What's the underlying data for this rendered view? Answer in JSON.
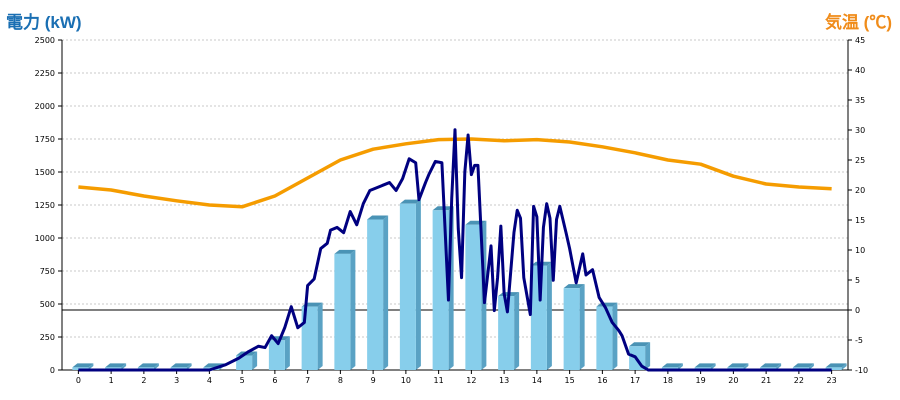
{
  "left_title": "電力 (kW)",
  "right_title": "気温 (℃)",
  "chart_data": {
    "type": "bar+line",
    "categories": [
      "0",
      "1",
      "2",
      "3",
      "4",
      "5",
      "6",
      "7",
      "8",
      "9",
      "10",
      "11",
      "12",
      "13",
      "14",
      "15",
      "16",
      "17",
      "18",
      "19",
      "20",
      "21",
      "22",
      "23"
    ],
    "y_left": {
      "label": "電力 (kW)",
      "lim": [
        0,
        2500
      ],
      "ticks": [
        0,
        250,
        500,
        750,
        1000,
        1250,
        1500,
        1750,
        2000,
        2250,
        2500
      ]
    },
    "y_right": {
      "label": "気温 (℃)",
      "lim": [
        -10,
        45
      ],
      "ticks": [
        -10,
        -5,
        0,
        5,
        10,
        15,
        20,
        25,
        30,
        35,
        40,
        45
      ]
    },
    "grid": true,
    "bars": [
      20,
      20,
      20,
      20,
      20,
      110,
      225,
      480,
      880,
      1140,
      1260,
      1210,
      1100,
      560,
      790,
      620,
      480,
      180,
      20,
      20,
      20,
      20,
      20,
      20
    ],
    "power_line": {
      "x": [
        0,
        1,
        2,
        3,
        4,
        4.5,
        4.9,
        5.2,
        5.5,
        5.7,
        5.9,
        6.1,
        6.3,
        6.5,
        6.7,
        6.9,
        7.0,
        7.2,
        7.4,
        7.6,
        7.7,
        7.9,
        8.1,
        8.3,
        8.5,
        8.7,
        8.9,
        9.1,
        9.3,
        9.5,
        9.7,
        9.9,
        10.1,
        10.3,
        10.4,
        10.6,
        10.7,
        10.9,
        11.1,
        11.3,
        11.4,
        11.5,
        11.6,
        11.7,
        11.8,
        11.9,
        12.0,
        12.1,
        12.2,
        12.4,
        12.6,
        12.7,
        12.8,
        12.9,
        13.0,
        13.1,
        13.3,
        13.4,
        13.5,
        13.6,
        13.8,
        13.9,
        14.0,
        14.1,
        14.2,
        14.3,
        14.4,
        14.5,
        14.6,
        14.7,
        14.9,
        15.0,
        15.2,
        15.4,
        15.5,
        15.7,
        15.9,
        16.1,
        16.3,
        16.5,
        16.6,
        16.8,
        17.0,
        17.2,
        17.4,
        17.6,
        17.8,
        18,
        19,
        20,
        21,
        22,
        23
      ],
      "y": [
        0,
        0,
        0,
        0,
        0,
        40,
        90,
        140,
        180,
        170,
        260,
        200,
        320,
        480,
        320,
        360,
        640,
        690,
        920,
        960,
        1060,
        1080,
        1040,
        1200,
        1100,
        1260,
        1360,
        1380,
        1400,
        1420,
        1360,
        1450,
        1600,
        1570,
        1290,
        1420,
        1480,
        1580,
        1570,
        530,
        1300,
        1820,
        1070,
        700,
        1500,
        1780,
        1480,
        1550,
        1550,
        510,
        940,
        450,
        700,
        1090,
        580,
        440,
        1040,
        1210,
        1150,
        700,
        420,
        1240,
        1160,
        530,
        1080,
        1260,
        1150,
        680,
        1140,
        1240,
        1030,
        920,
        660,
        880,
        720,
        760,
        550,
        470,
        360,
        300,
        260,
        120,
        100,
        30,
        0,
        0,
        0,
        0,
        0,
        0,
        0,
        0,
        0
      ],
      "color": "#000080"
    },
    "temp_line": {
      "x": [
        0,
        1,
        2,
        3,
        4,
        5,
        6,
        7,
        8,
        9,
        10,
        11,
        12,
        13,
        14,
        15,
        16,
        17,
        18,
        19,
        20,
        21,
        22,
        23
      ],
      "y": [
        20.5,
        20,
        19,
        18.2,
        17.5,
        17.2,
        19,
        22,
        25,
        26.8,
        27.7,
        28.4,
        28.5,
        28.2,
        28.4,
        28,
        27.2,
        26.2,
        25,
        24.3,
        22.3,
        21,
        20.5,
        20.2
      ],
      "color": "#f59c00"
    },
    "bar_color": "#87ceeb"
  }
}
